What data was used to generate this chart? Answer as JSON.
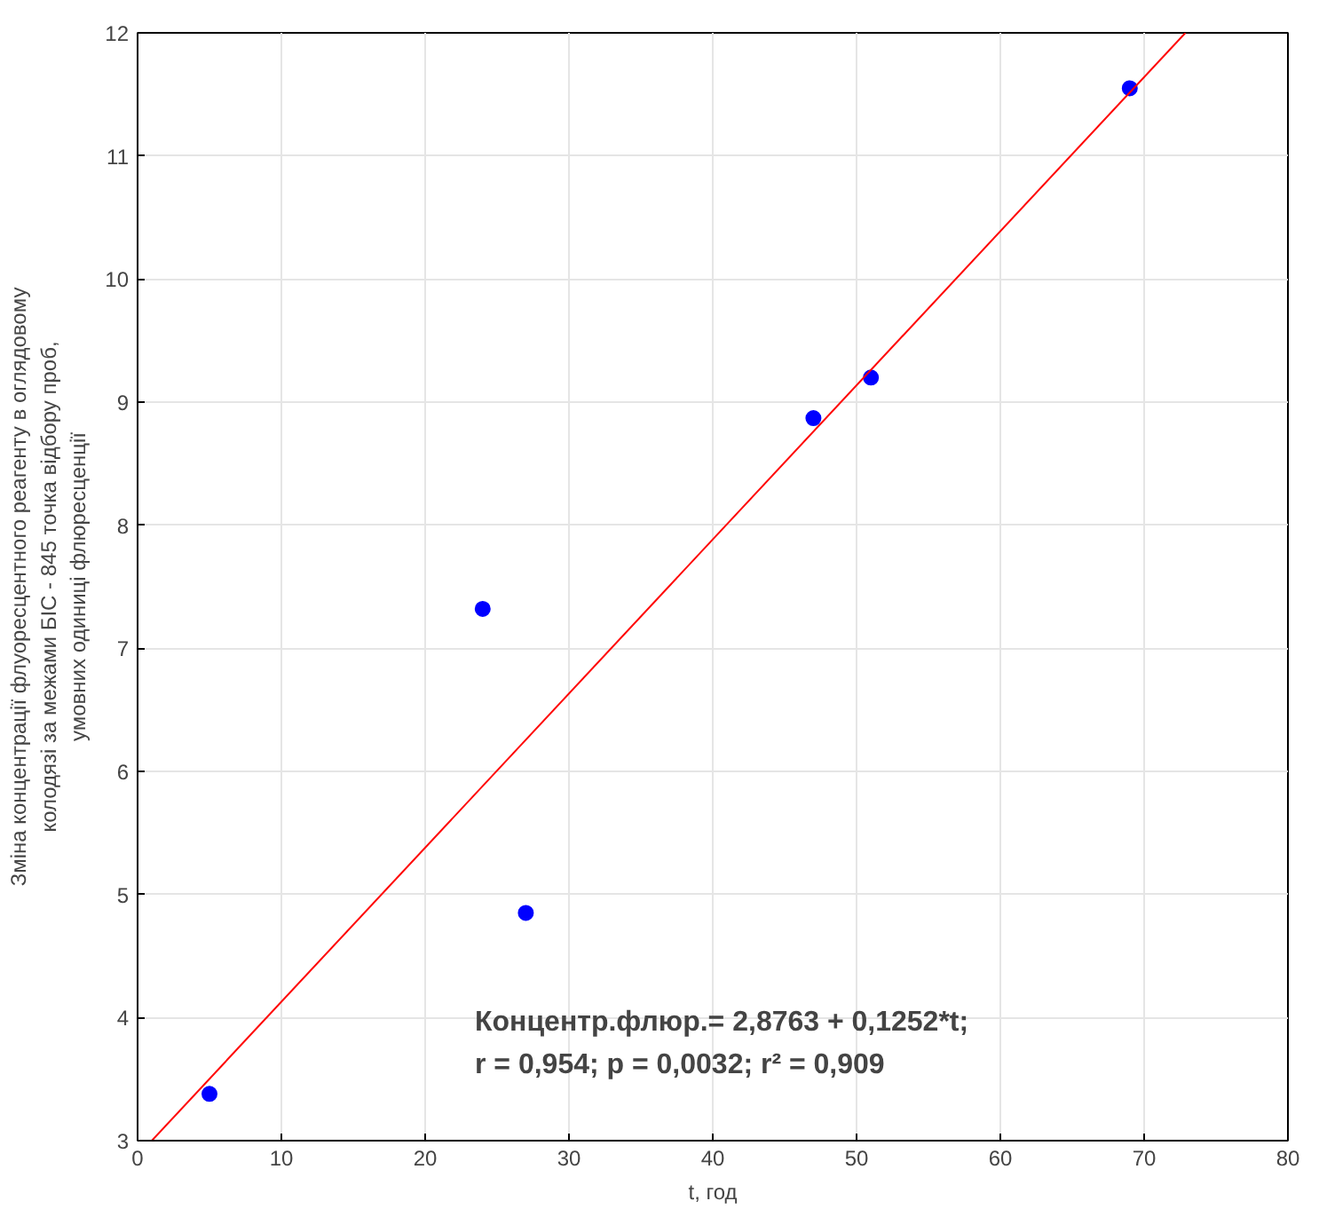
{
  "chart_data": {
    "type": "scatter",
    "xlabel": "t, год",
    "ylabel": "Зміна концентрації флуоресцентного реагенту в оглядовому\nколодязі за межами БІС - 845 точка відбору проб,\nумовних одиниці флюресценції",
    "series": [
      {
        "color": "#0000ff",
        "marker": "circle",
        "x": [
          5,
          24,
          27,
          47,
          51,
          69
        ],
        "values": [
          3.38,
          7.32,
          4.85,
          8.87,
          9.2,
          11.55
        ]
      },
      {
        "type": "line",
        "marker": "none",
        "color": "#ff0000",
        "x": [
          0.99,
          72.87
        ],
        "values": [
          3.0,
          12.0
        ]
      }
    ],
    "grid": true,
    "xlim": [
      0,
      80
    ],
    "ylim": [
      3,
      12
    ],
    "xticks": [
      0,
      10,
      20,
      30,
      40,
      50,
      60,
      70,
      80
    ],
    "yticks": [
      3,
      4,
      5,
      6,
      7,
      8,
      9,
      10,
      11,
      12
    ],
    "annotations": [
      "Концентр.флюр.= 2,8763 + 0,1252*t;",
      "r = 0,954; p = 0,0032; r² = 0,909"
    ]
  }
}
